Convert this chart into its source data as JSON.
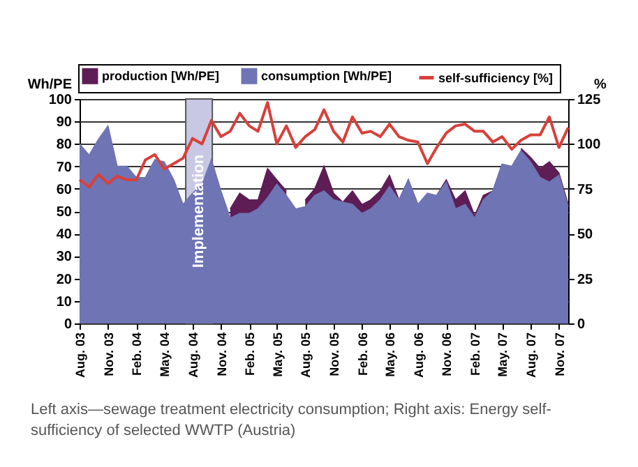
{
  "chart_data": {
    "type": "line",
    "x": [
      "2003-08",
      "2003-09",
      "2003-10",
      "2003-11",
      "2003-12",
      "2004-01",
      "2004-02",
      "2004-03",
      "2004-04",
      "2004-05",
      "2004-06",
      "2004-07",
      "2004-08",
      "2004-09",
      "2004-10",
      "2004-11",
      "2004-12",
      "2005-01",
      "2005-02",
      "2005-03",
      "2005-04",
      "2005-05",
      "2005-06",
      "2005-07",
      "2005-08",
      "2005-09",
      "2005-10",
      "2005-11",
      "2005-12",
      "2006-01",
      "2006-02",
      "2006-03",
      "2006-04",
      "2006-05",
      "2006-06",
      "2006-07",
      "2006-08",
      "2006-09",
      "2006-10",
      "2006-11",
      "2006-12",
      "2007-01",
      "2007-02",
      "2007-03",
      "2007-04",
      "2007-05",
      "2007-06",
      "2007-07",
      "2007-08",
      "2007-09",
      "2007-10",
      "2007-11",
      "2007-12"
    ],
    "series": [
      {
        "name": "production [Wh/PE]",
        "type": "area",
        "color": "#5e1d55",
        "values": [
          null,
          null,
          null,
          null,
          null,
          null,
          null,
          null,
          null,
          null,
          null,
          null,
          null,
          null,
          null,
          null,
          51,
          58,
          55,
          55,
          69,
          64,
          59,
          null,
          55,
          60,
          70,
          58,
          54,
          59,
          53,
          55,
          59,
          66,
          55,
          64,
          53,
          null,
          57,
          64,
          55,
          59,
          48,
          57,
          59,
          71,
          null,
          78,
          74,
          69,
          72,
          67,
          53
        ]
      },
      {
        "name": "consumption [Wh/PE]",
        "type": "area",
        "color": "#6e74b4",
        "values": [
          80,
          75,
          82,
          88,
          70,
          70,
          65,
          65,
          73,
          72,
          64,
          53,
          58,
          62,
          73,
          59,
          47,
          49,
          49,
          51,
          56,
          62,
          57,
          51,
          52,
          57,
          59,
          55,
          54,
          53,
          49,
          51,
          55,
          61,
          55,
          64,
          53,
          58,
          57,
          63,
          51,
          53,
          47,
          55,
          59,
          71,
          70,
          77,
          72,
          65,
          63,
          66,
          52
        ]
      },
      {
        "name": "self-sufficiency [%]",
        "axis": "y2",
        "color": "#d8403a",
        "values": [
          80,
          76,
          83,
          78,
          82,
          80,
          80,
          91,
          94,
          86,
          89,
          92,
          103,
          100,
          113,
          104,
          107,
          117,
          110,
          107,
          123,
          100,
          110,
          98,
          104,
          108,
          119,
          107,
          101,
          115,
          106,
          107,
          104,
          111,
          104,
          102,
          101,
          89,
          98,
          106,
          110,
          111,
          107,
          107,
          101,
          104,
          97,
          102,
          105,
          105,
          115,
          98,
          109
        ]
      }
    ],
    "xlim": [
      "2003-08",
      "2007-12"
    ],
    "xticks": [
      {
        "value": "2003-08",
        "label": "Aug. 03"
      },
      {
        "value": "2003-11",
        "label": "Nov. 03"
      },
      {
        "value": "2004-02",
        "label": "Feb. 04"
      },
      {
        "value": "2004-05",
        "label": "May. 04"
      },
      {
        "value": "2004-08",
        "label": "Aug. 04"
      },
      {
        "value": "2004-11",
        "label": "Nov. 04"
      },
      {
        "value": "2005-02",
        "label": "Feb. 05"
      },
      {
        "value": "2005-05",
        "label": "May. 05"
      },
      {
        "value": "2005-08",
        "label": "Aug. 05"
      },
      {
        "value": "2005-11",
        "label": "Nov. 05"
      },
      {
        "value": "2006-02",
        "label": "Feb. 06"
      },
      {
        "value": "2006-05",
        "label": "May. 06"
      },
      {
        "value": "2006-08",
        "label": "Aug. 06"
      },
      {
        "value": "2006-11",
        "label": "Nov. 06"
      },
      {
        "value": "2007-02",
        "label": "Feb. 07"
      },
      {
        "value": "2007-05",
        "label": "May. 07"
      },
      {
        "value": "2007-08",
        "label": "Aug. 07"
      },
      {
        "value": "2007-11",
        "label": "Nov. 07"
      }
    ],
    "ylabel": "Wh/PE",
    "ylim": [
      0,
      100
    ],
    "yticks": [
      0,
      10,
      20,
      30,
      40,
      50,
      60,
      70,
      80,
      90,
      100
    ],
    "y2label": "%",
    "y2lim": [
      0,
      125
    ],
    "y2ticks": [
      0,
      25,
      50,
      75,
      100,
      125
    ],
    "bands": [
      {
        "axis": "x",
        "from": "2004-07-10",
        "to": "2004-10-04",
        "label": "Implementation"
      }
    ],
    "grid": "y",
    "legend": "top",
    "annotations": [
      "Left axis—sewage treatment electricity consumption; Right axis: Energy self-sufficiency of selected WWTP (Austria)"
    ]
  }
}
